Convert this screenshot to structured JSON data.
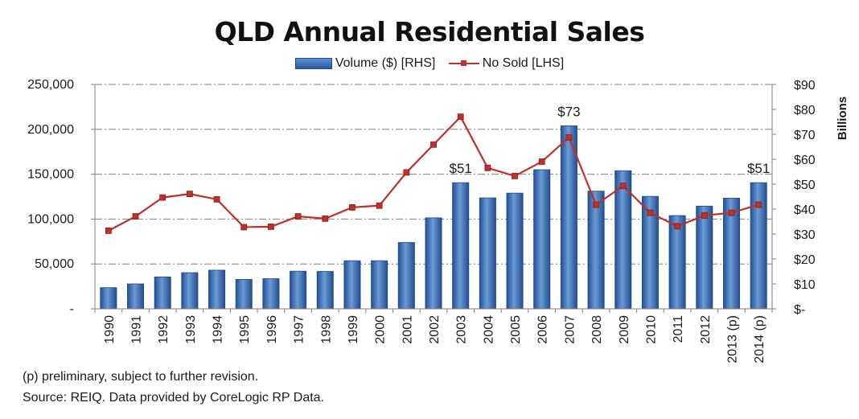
{
  "chart_data": {
    "type": "bar",
    "title": "QLD Annual Residential Sales",
    "categories": [
      "1990",
      "1991",
      "1992",
      "1993",
      "1994",
      "1995",
      "1996",
      "1997",
      "1998",
      "1999",
      "2000",
      "2001",
      "2002",
      "2003",
      "2004",
      "2005",
      "2006",
      "2007",
      "2008",
      "2009",
      "2010",
      "2011",
      "2012",
      "2013 (p)",
      "2014 (p)"
    ],
    "series": [
      {
        "name": "Volume ($) [RHS]",
        "type": "bar",
        "axis": "right",
        "values": [
          8.5,
          10,
          12.8,
          14.5,
          15.5,
          11.8,
          12.1,
          15.1,
          15,
          19.3,
          19.3,
          26.6,
          36.5,
          50.6,
          44.5,
          46.4,
          55.8,
          73.4,
          47.2,
          55.4,
          45.1,
          37.4,
          41.2,
          44.4,
          50.6
        ]
      },
      {
        "name": "No Sold [LHS]",
        "type": "line",
        "axis": "left",
        "values": [
          87000,
          103000,
          124000,
          128000,
          122000,
          91000,
          91500,
          103000,
          100500,
          113000,
          115000,
          152000,
          183000,
          214000,
          157000,
          148000,
          164000,
          191000,
          116000,
          137000,
          107000,
          92000,
          104000,
          107000,
          116000
        ]
      }
    ],
    "left_axis": {
      "min": 0,
      "max": 250000,
      "ticks": [
        "-",
        "50,000",
        "100,000",
        "150,000",
        "200,000",
        "250,000"
      ]
    },
    "right_axis": {
      "min": 0,
      "max": 90,
      "ticks": [
        "$-",
        "$10",
        "$20",
        "$30",
        "$40",
        "$50",
        "$60",
        "$70",
        "$80",
        "$90"
      ],
      "label": "Billions"
    },
    "data_labels": [
      {
        "category_index": 13,
        "text": "$51"
      },
      {
        "category_index": 17,
        "text": "$73"
      },
      {
        "category_index": 24,
        "text": "$51"
      }
    ],
    "grid": true,
    "legend_position": "top",
    "colors": {
      "bar": "#3366aa",
      "bar_light": "#6a9ad8",
      "bar_dark": "#1f4a8a",
      "line": "#c0302a",
      "grid": "#808080"
    }
  },
  "footnotes": {
    "line1": "(p) preliminary, subject to further revision.",
    "line2": "Source: REIQ. Data provided by CoreLogic RP Data."
  }
}
